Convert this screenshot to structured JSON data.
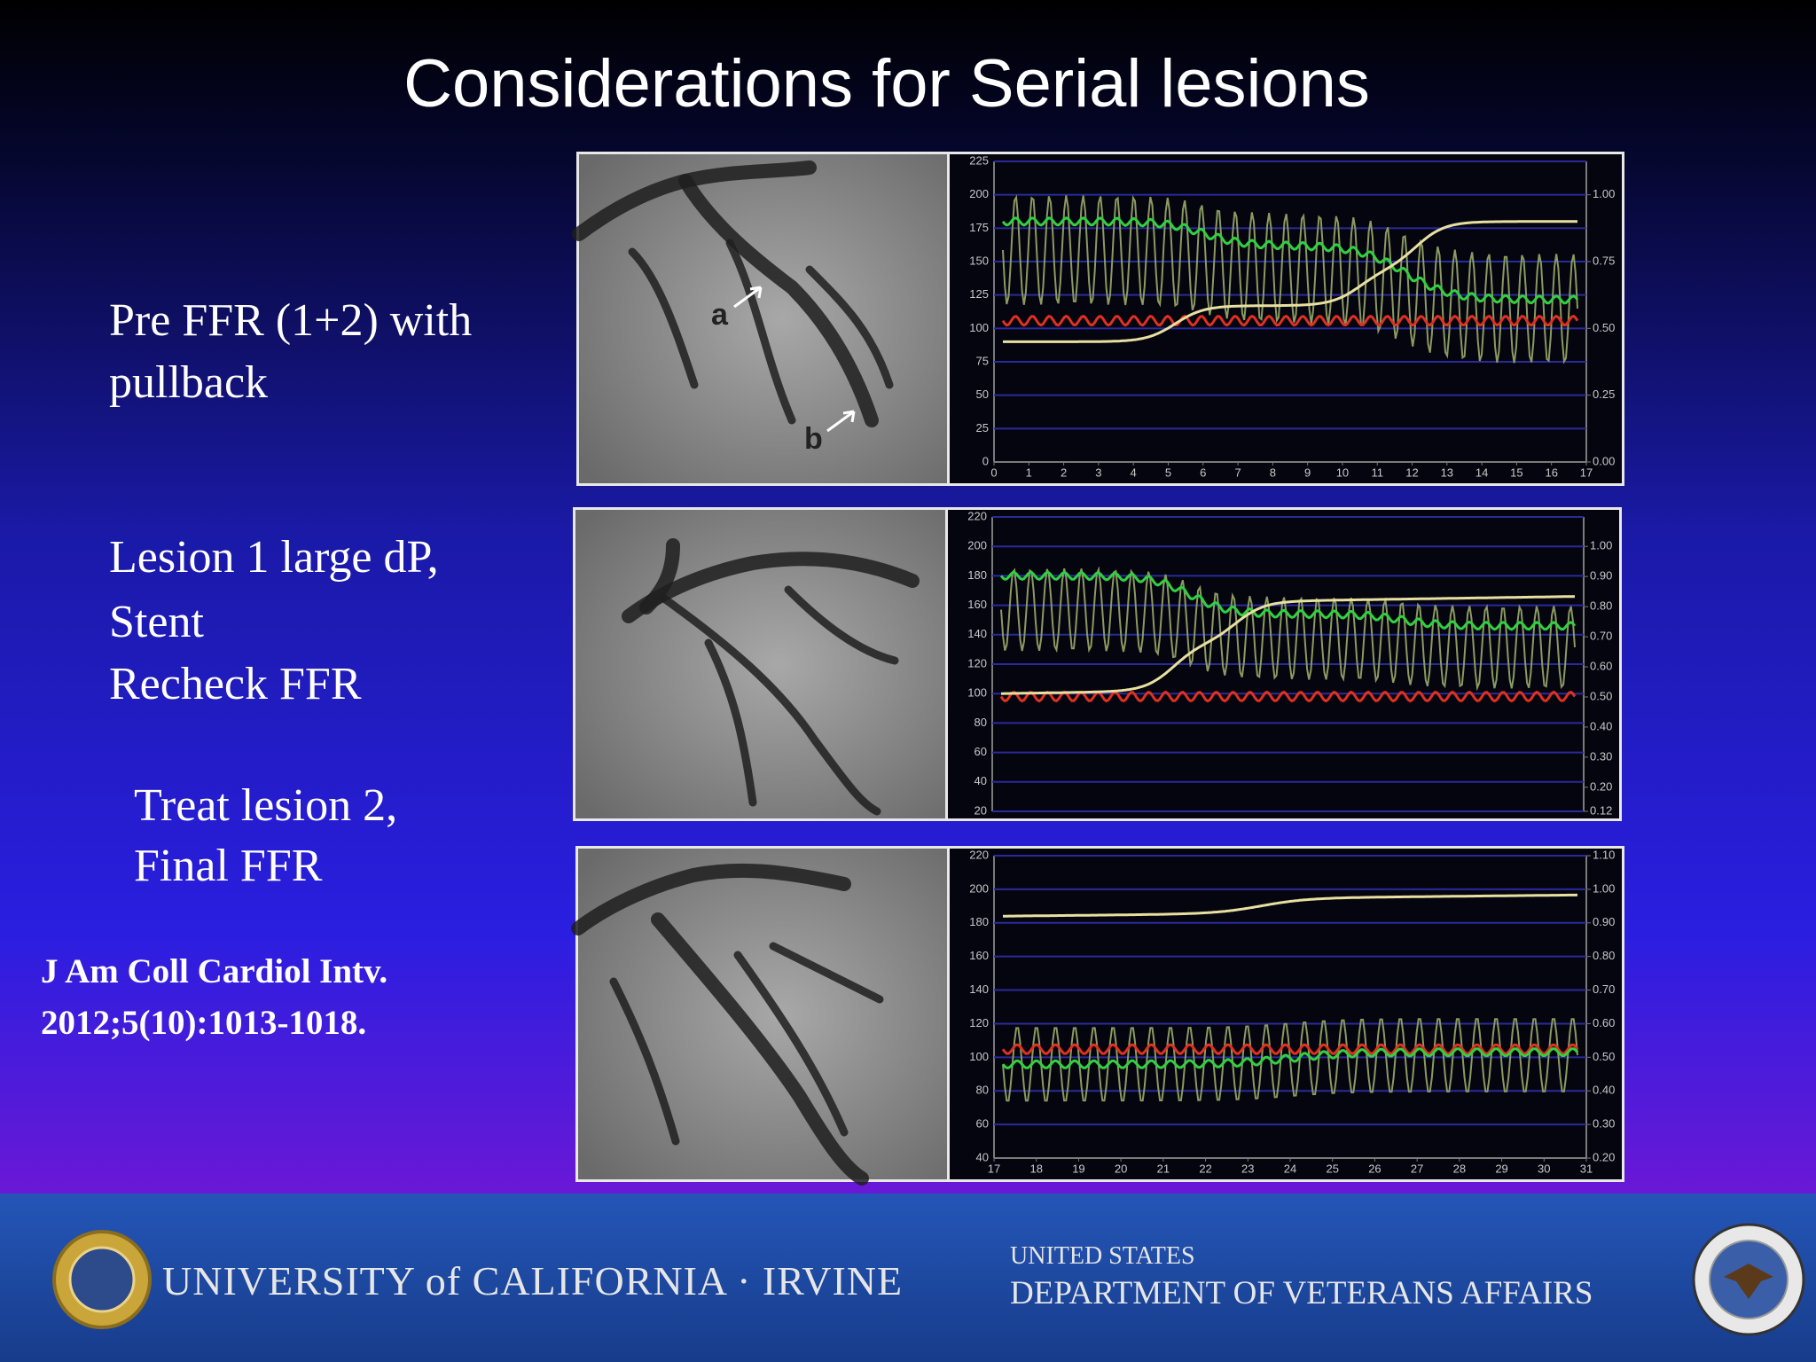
{
  "title": "Considerations for Serial lesions",
  "steps": [
    {
      "lines": [
        "Pre FFR (1+2) with",
        "pullback"
      ]
    },
    {
      "lines": [
        "Lesion 1 large dP,",
        "Stent",
        "Recheck FFR"
      ]
    },
    {
      "lines": [
        "Treat lesion 2,",
        "Final FFR"
      ]
    }
  ],
  "citation": [
    "J Am Coll Cardiol Intv.",
    "2012;5(10):1013-1018."
  ],
  "panels": [
    {
      "angiogram_labels": [
        "a",
        "b"
      ],
      "left_ticks": [
        0,
        25,
        50,
        75,
        100,
        125,
        150,
        175,
        200,
        225
      ],
      "right_ticks": [
        {
          "value": 0,
          "label": "0.00"
        },
        {
          "value": 0.25,
          "label": "0.25"
        },
        {
          "value": 0.5,
          "label": "0.50"
        },
        {
          "value": 0.75,
          "label": "0.75"
        },
        {
          "value": 1,
          "label": "1.00"
        }
      ],
      "x_ticks": [
        0,
        1,
        2,
        3,
        4,
        5,
        6,
        7,
        8,
        9,
        10,
        11,
        12,
        13,
        14,
        15,
        16,
        17
      ]
    },
    {
      "angiogram_labels": [],
      "left_ticks": [
        20,
        40,
        60,
        80,
        100,
        120,
        140,
        160,
        180,
        200,
        220
      ],
      "right_ticks": [
        {
          "value": 0.12,
          "label": "0.12"
        },
        {
          "value": 0.2,
          "label": "0.20"
        },
        {
          "value": 0.3,
          "label": "0.30"
        },
        {
          "value": 0.4,
          "label": "0.40"
        },
        {
          "value": 0.5,
          "label": "0.50"
        },
        {
          "value": 0.6,
          "label": "0.60"
        },
        {
          "value": 0.7,
          "label": "0.70"
        },
        {
          "value": 0.8,
          "label": "0.80"
        },
        {
          "value": 0.9,
          "label": "0.90"
        },
        {
          "value": 1,
          "label": "1.00"
        }
      ],
      "x_ticks": []
    },
    {
      "angiogram_labels": [],
      "left_ticks": [
        40,
        60,
        80,
        100,
        120,
        140,
        160,
        180,
        200,
        220
      ],
      "right_ticks": [
        {
          "value": 0.2,
          "label": "0.20"
        },
        {
          "value": 0.3,
          "label": "0.30"
        },
        {
          "value": 0.4,
          "label": "0.40"
        },
        {
          "value": 0.5,
          "label": "0.50"
        },
        {
          "value": 0.6,
          "label": "0.60"
        },
        {
          "value": 0.7,
          "label": "0.70"
        },
        {
          "value": 0.8,
          "label": "0.80"
        },
        {
          "value": 0.9,
          "label": "0.90"
        },
        {
          "value": 1,
          "label": "1.00"
        },
        {
          "value": 1.1,
          "label": "1.10"
        }
      ],
      "x_ticks": [
        17,
        18,
        19,
        20,
        21,
        22,
        23,
        24,
        25,
        26,
        27,
        28,
        29,
        30,
        31
      ]
    }
  ],
  "footer": {
    "university": "UNIVERSITY of CALIFORNIA · IRVINE",
    "va_line1": "UNITED STATES",
    "va_line2": "DEPARTMENT OF VETERANS AFFAIRS"
  }
}
